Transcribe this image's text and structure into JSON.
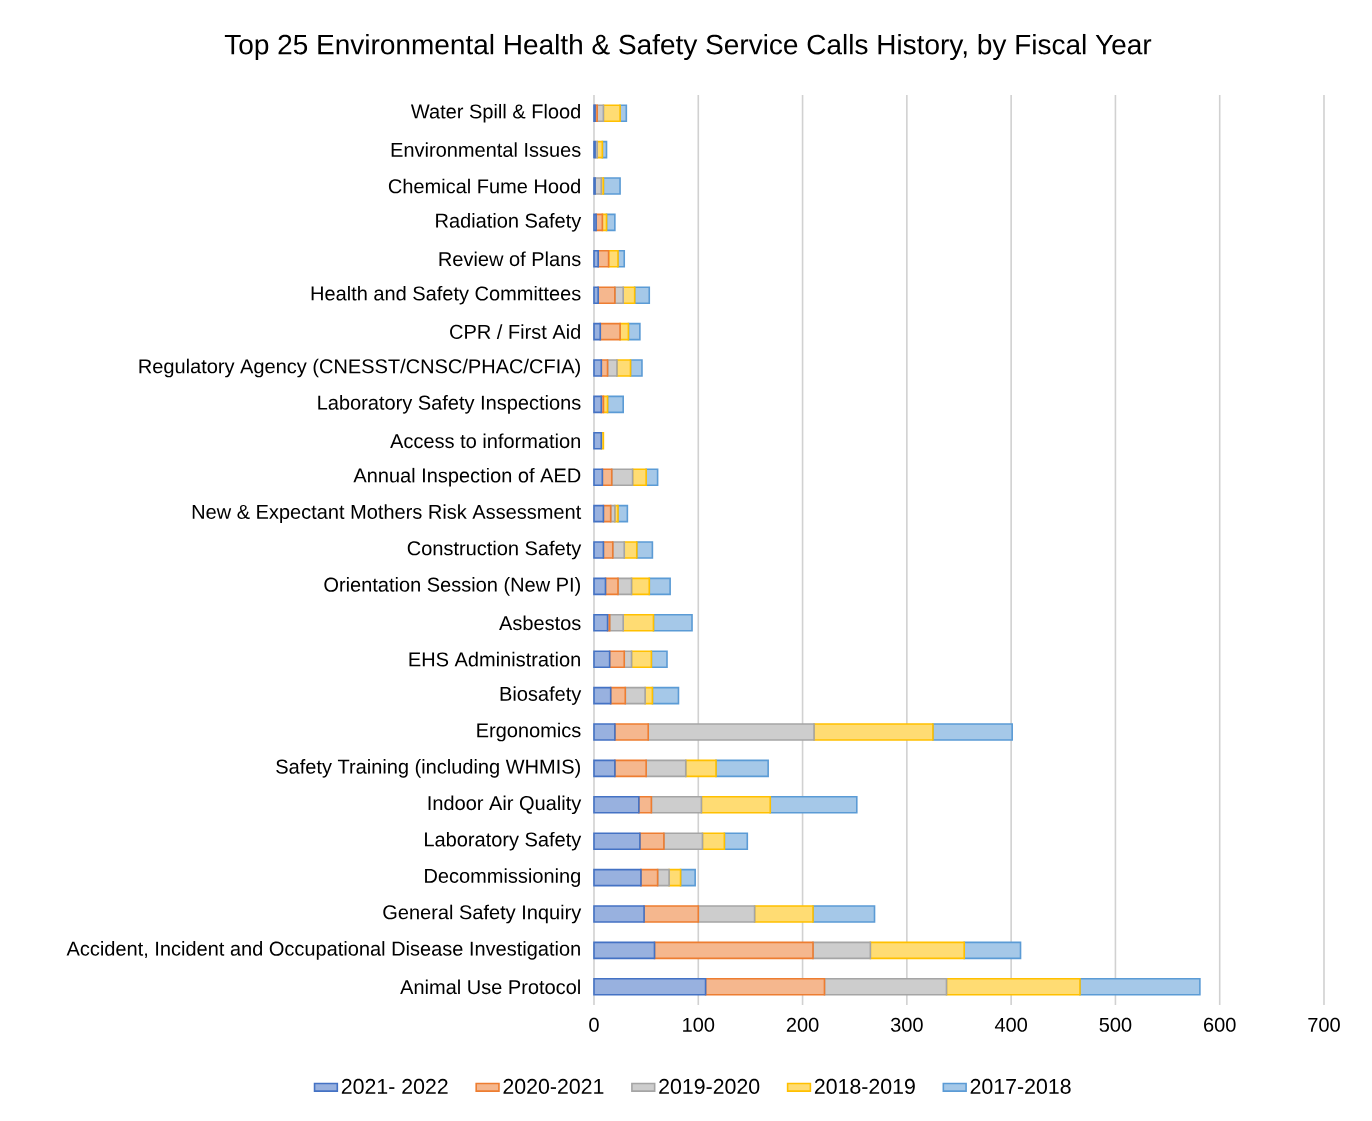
{
  "chart_data": {
    "type": "bar",
    "orientation": "horizontal",
    "stacked": true,
    "title": "Top 25 Environmental Health & Safety Service Calls History, by Fiscal Year",
    "categories": [
      "Water Spill & Flood",
      "Environmental Issues",
      "Chemical Fume Hood",
      "Radiation Safety",
      "Review of Plans",
      "Health and Safety Committees",
      "CPR / First Aid",
      "Regulatory Agency (CNESST/CNSC/PHAC/CFIA)",
      "Laboratory Safety Inspections",
      "Access to information",
      "Annual Inspection of AED",
      "New & Expectant Mothers Risk Assessment",
      "Construction Safety",
      "Orientation Session (New PI)",
      "Asbestos",
      "EHS Administration",
      "Biosafety",
      "Ergonomics",
      "Safety Training (including WHMIS)",
      "Indoor Air Quality",
      "Laboratory Safety",
      "Decommissioning",
      "General Safety Inquiry",
      "Accident, Incident and Occupational Disease Investigation",
      "Animal Use Protocol"
    ],
    "series": [
      {
        "name": "2021- 2022",
        "color": "#4472c4",
        "values": [
          1,
          1,
          1,
          2,
          4,
          4,
          6,
          7,
          7,
          7,
          8,
          9,
          9,
          11,
          13,
          15,
          16,
          20,
          20,
          43,
          44,
          45,
          48,
          58,
          107
        ]
      },
      {
        "name": "2020-2021",
        "color": "#ed7d31",
        "values": [
          2,
          0,
          null,
          6,
          10,
          16,
          19,
          6,
          2,
          0,
          9,
          7,
          9,
          12,
          2,
          14,
          14,
          32,
          30,
          12,
          23,
          16,
          52,
          152,
          114
        ]
      },
      {
        "name": "2019-2020",
        "color": "#a5a5a5",
        "values": [
          6,
          2,
          6,
          null,
          null,
          8,
          null,
          9,
          0,
          0,
          20,
          4,
          11,
          13,
          13,
          7,
          19,
          159,
          38,
          48,
          37,
          11,
          54,
          55,
          117
        ]
      },
      {
        "name": "2018-2019",
        "color": "#ffc000",
        "values": [
          16,
          5,
          2,
          4,
          9,
          11,
          8,
          13,
          4,
          2,
          13,
          3,
          12,
          17,
          29,
          19,
          7,
          114,
          29,
          66,
          21,
          11,
          56,
          90,
          128
        ]
      },
      {
        "name": "2017-2018",
        "color": "#5b9bd5",
        "values": [
          6,
          4,
          16,
          8,
          6,
          14,
          11,
          11,
          15,
          0,
          11,
          9,
          15,
          20,
          37,
          15,
          25,
          76,
          50,
          83,
          22,
          14,
          59,
          54,
          115
        ]
      }
    ],
    "xlim": [
      0,
      700
    ],
    "xticks": [
      0,
      100,
      200,
      300,
      400,
      500,
      600,
      700
    ],
    "grid": "x",
    "legend": "bottom"
  }
}
